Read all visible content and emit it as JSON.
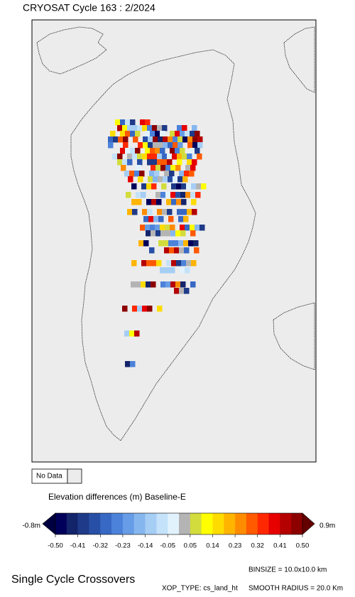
{
  "header": {
    "title": "CRYOSAT Cycle 163 : 2/2024"
  },
  "legend": {
    "no_data": "No Data"
  },
  "colorbar": {
    "title": "Elevation differences (m) Baseline-E",
    "min_label": "-0.8m",
    "max_label": "0.9m",
    "ticks": [
      "-0.50",
      "-0.41",
      "-0.32",
      "-0.23",
      "-0.14",
      "-0.05",
      "0.05",
      "0.14",
      "0.23",
      "0.32",
      "0.41",
      "0.50"
    ],
    "colors": [
      "#00005a",
      "#14246a",
      "#1e3a88",
      "#284fa6",
      "#3768c4",
      "#4c82da",
      "#679ce6",
      "#86b6ee",
      "#a6cef5",
      "#c4e2fa",
      "#e2f2fd",
      "#b4b4b4",
      "#d2dc3c",
      "#ffff00",
      "#ffdc00",
      "#ffb400",
      "#ff8c00",
      "#ff5a00",
      "#ff2800",
      "#e60000",
      "#b40000",
      "#8c0000"
    ],
    "low_color": "#000040",
    "high_color": "#640000"
  },
  "footer": {
    "caption": "Single Cycle Crossovers",
    "binsize": "BINSIZE = 10.0x10.0 km",
    "xop_type": "XOP_TYPE: cs_land_ht",
    "smooth_radius": "SMOOTH RADIUS = 20.0 Km"
  }
}
